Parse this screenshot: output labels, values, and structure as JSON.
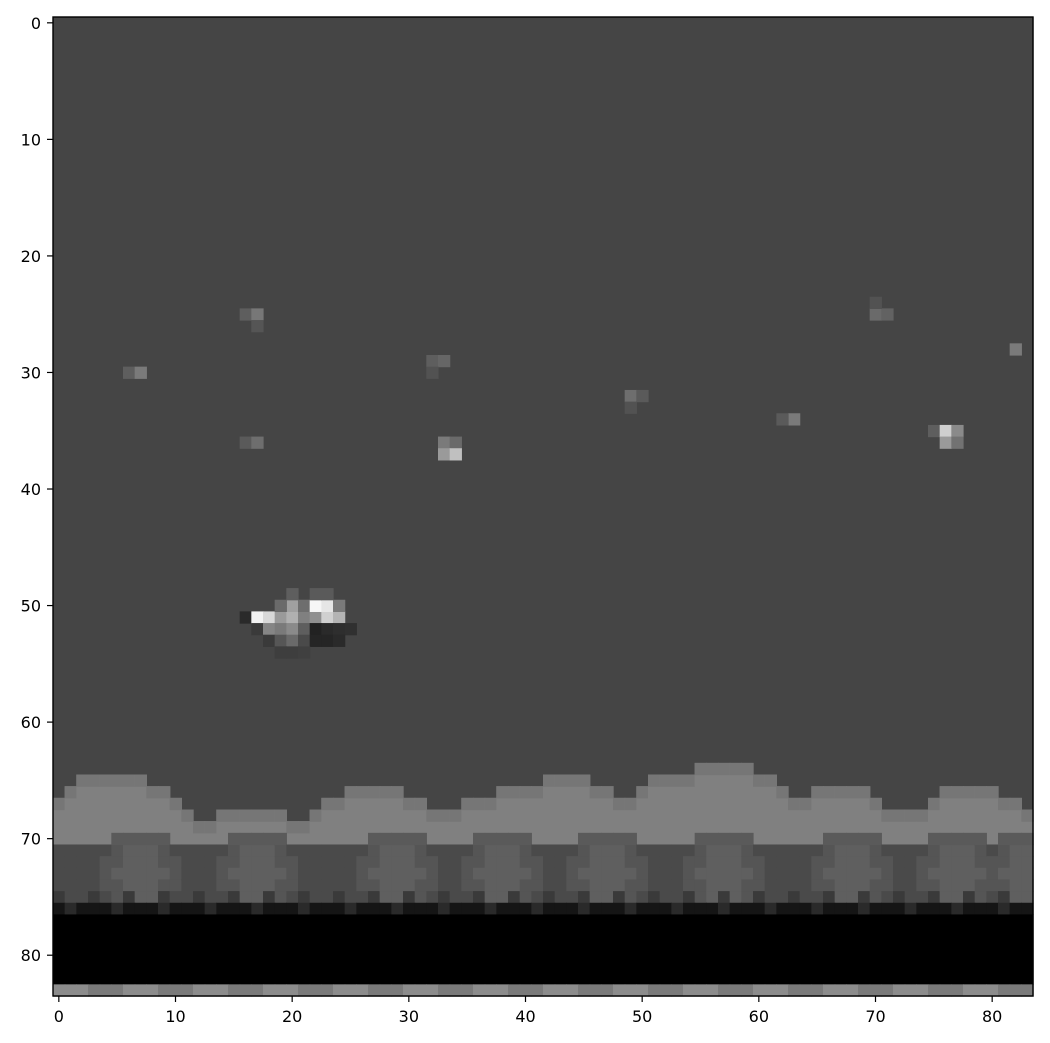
{
  "chart_data": {
    "type": "heatmap",
    "colormap": "gray",
    "background_value": "#454545",
    "xlim": [
      -0.5,
      83.5
    ],
    "ylim": [
      83.5,
      -0.5
    ],
    "x_ticks": [
      0,
      10,
      20,
      30,
      40,
      50,
      60,
      70,
      80
    ],
    "y_ticks": [
      0,
      10,
      20,
      30,
      40,
      50,
      60,
      70,
      80
    ],
    "title": "",
    "xlabel": "",
    "ylabel": "",
    "stars": [
      {
        "x": 6,
        "y": 30,
        "color": "#5e5e5e"
      },
      {
        "x": 7,
        "y": 30,
        "color": "#7a7a7a"
      },
      {
        "x": 16,
        "y": 25,
        "color": "#5e5e5e"
      },
      {
        "x": 17,
        "y": 25,
        "color": "#777777"
      },
      {
        "x": 17,
        "y": 26,
        "color": "#555555"
      },
      {
        "x": 16,
        "y": 36,
        "color": "#5a5a5a"
      },
      {
        "x": 17,
        "y": 36,
        "color": "#6e6e6e"
      },
      {
        "x": 32,
        "y": 29,
        "color": "#5e5e5e"
      },
      {
        "x": 33,
        "y": 29,
        "color": "#666666"
      },
      {
        "x": 32,
        "y": 30,
        "color": "#525252"
      },
      {
        "x": 33,
        "y": 36,
        "color": "#7a7a7a"
      },
      {
        "x": 34,
        "y": 36,
        "color": "#6a6a6a"
      },
      {
        "x": 33,
        "y": 37,
        "color": "#9a9a9a"
      },
      {
        "x": 34,
        "y": 37,
        "color": "#c0c0c0"
      },
      {
        "x": 49,
        "y": 32,
        "color": "#6e6e6e"
      },
      {
        "x": 50,
        "y": 32,
        "color": "#5a5a5a"
      },
      {
        "x": 49,
        "y": 33,
        "color": "#525252"
      },
      {
        "x": 63,
        "y": 34,
        "color": "#7a7a7a"
      },
      {
        "x": 62,
        "y": 34,
        "color": "#5a5a5a"
      },
      {
        "x": 70,
        "y": 25,
        "color": "#6a6a6a"
      },
      {
        "x": 71,
        "y": 25,
        "color": "#626262"
      },
      {
        "x": 70,
        "y": 24,
        "color": "#525252"
      },
      {
        "x": 82,
        "y": 28,
        "color": "#7a7a7a"
      },
      {
        "x": 75,
        "y": 35,
        "color": "#5e5e5e"
      },
      {
        "x": 76,
        "y": 35,
        "color": "#cfcfcf"
      },
      {
        "x": 77,
        "y": 35,
        "color": "#8a8a8a"
      },
      {
        "x": 76,
        "y": 36,
        "color": "#9a9a9a"
      },
      {
        "x": 77,
        "y": 36,
        "color": "#727272"
      }
    ],
    "ship": [
      {
        "x": 16,
        "y": 51,
        "color": "#2a2a2a"
      },
      {
        "x": 17,
        "y": 51,
        "color": "#f2f2f2"
      },
      {
        "x": 18,
        "y": 51,
        "color": "#d8d8d8"
      },
      {
        "x": 19,
        "y": 51,
        "color": "#9a9a9a"
      },
      {
        "x": 20,
        "y": 51,
        "color": "#b0b0b0"
      },
      {
        "x": 21,
        "y": 51,
        "color": "#808080"
      },
      {
        "x": 22,
        "y": 51,
        "color": "#909090"
      },
      {
        "x": 23,
        "y": 51,
        "color": "#d0d0d0"
      },
      {
        "x": 24,
        "y": 51,
        "color": "#b4b4b4"
      },
      {
        "x": 20,
        "y": 50,
        "color": "#a0a0a0"
      },
      {
        "x": 21,
        "y": 50,
        "color": "#6e6e6e"
      },
      {
        "x": 22,
        "y": 50,
        "color": "#f6f6f6"
      },
      {
        "x": 23,
        "y": 50,
        "color": "#e6e6e6"
      },
      {
        "x": 24,
        "y": 50,
        "color": "#7a7a7a"
      },
      {
        "x": 19,
        "y": 50,
        "color": "#6a6a6a"
      },
      {
        "x": 20,
        "y": 49,
        "color": "#5e5e5e"
      },
      {
        "x": 22,
        "y": 49,
        "color": "#5a5a5a"
      },
      {
        "x": 23,
        "y": 49,
        "color": "#5a5a5a"
      },
      {
        "x": 17,
        "y": 52,
        "color": "#3a3a3a"
      },
      {
        "x": 18,
        "y": 52,
        "color": "#858585"
      },
      {
        "x": 19,
        "y": 52,
        "color": "#7a7a7a"
      },
      {
        "x": 20,
        "y": 52,
        "color": "#8a8a8a"
      },
      {
        "x": 21,
        "y": 52,
        "color": "#5e5e5e"
      },
      {
        "x": 22,
        "y": 52,
        "color": "#222222"
      },
      {
        "x": 23,
        "y": 52,
        "color": "#2a2a2a"
      },
      {
        "x": 24,
        "y": 52,
        "color": "#2e2e2e"
      },
      {
        "x": 25,
        "y": 52,
        "color": "#303030"
      },
      {
        "x": 18,
        "y": 53,
        "color": "#3a3a3a"
      },
      {
        "x": 19,
        "y": 53,
        "color": "#565656"
      },
      {
        "x": 20,
        "y": 53,
        "color": "#6a6a6a"
      },
      {
        "x": 21,
        "y": 53,
        "color": "#4a4a4a"
      },
      {
        "x": 22,
        "y": 53,
        "color": "#252525"
      },
      {
        "x": 23,
        "y": 53,
        "color": "#252525"
      },
      {
        "x": 24,
        "y": 53,
        "color": "#2a2a2a"
      },
      {
        "x": 19,
        "y": 54,
        "color": "#3e3e3e"
      },
      {
        "x": 20,
        "y": 54,
        "color": "#3e3e3e"
      },
      {
        "x": 21,
        "y": 54,
        "color": "#404040"
      }
    ],
    "hill_top_rows": [
      67,
      66,
      65,
      65,
      65,
      65,
      65,
      65,
      66,
      66,
      67,
      68,
      69,
      69,
      68,
      68,
      68,
      68,
      68,
      68,
      69,
      69,
      68,
      67,
      67,
      66,
      66,
      66,
      66,
      66,
      67,
      67,
      68,
      68,
      68,
      67,
      67,
      67,
      66,
      66,
      66,
      66,
      65,
      65,
      65,
      65,
      66,
      66,
      67,
      67,
      66,
      65,
      65,
      65,
      65,
      64,
      64,
      64,
      64,
      64,
      65,
      65,
      66,
      67,
      67,
      66,
      66,
      66,
      66,
      66,
      67,
      68,
      68,
      68,
      68,
      67,
      66,
      66,
      66,
      66,
      66,
      67,
      67,
      68
    ],
    "row_bands": [
      {
        "y0": 71,
        "y1": 76,
        "pattern": "lumps",
        "colors": [
          "#5f5f5f",
          "#555555",
          "#4a4a4a"
        ]
      },
      {
        "y0": 76,
        "y1": 77,
        "pattern": "solid",
        "colors": [
          "#151515"
        ]
      },
      {
        "y0": 77,
        "y1": 83,
        "pattern": "solid",
        "colors": [
          "#000000"
        ]
      },
      {
        "y0": 83,
        "y1": 84,
        "pattern": "stripe",
        "colors": [
          "#8c8c8c",
          "#7a7a7a"
        ]
      }
    ],
    "hill_color": "#808080",
    "hill_edge_color": "#767676",
    "ground_lump_centers": [
      7,
      17,
      29,
      38,
      47,
      57,
      68,
      77,
      83
    ]
  }
}
